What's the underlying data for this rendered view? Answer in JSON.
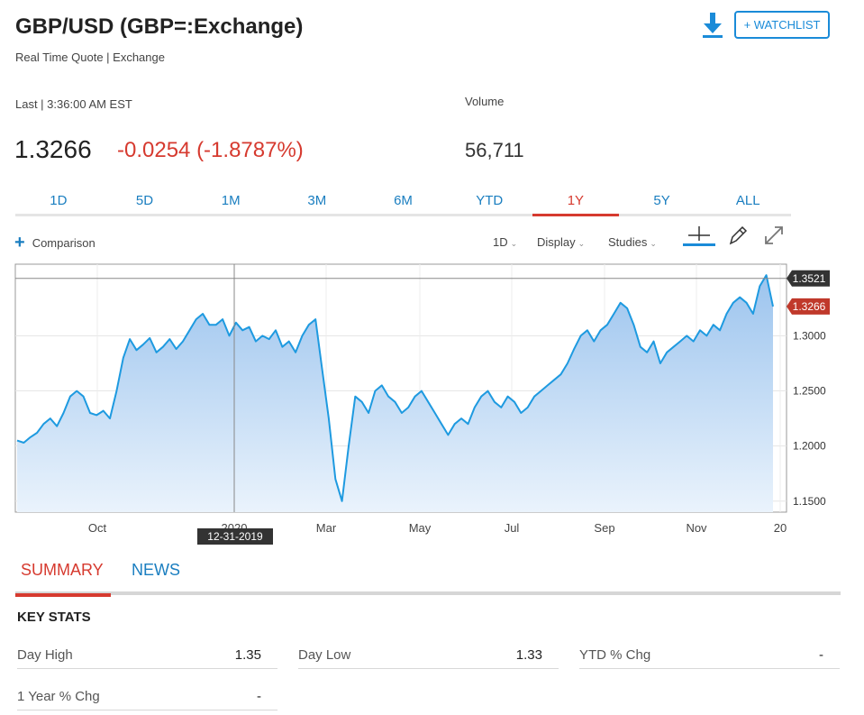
{
  "header": {
    "title": "GBP/USD (GBP=:Exchange)",
    "subtitle": "Real Time Quote | Exchange",
    "watchlist_label": "+ WATCHLIST",
    "download_icon": "download-icon"
  },
  "quote": {
    "last_label": "Last | 3:36:00 AM EST",
    "last_price": "1.3266",
    "change": "-0.0254 (-1.8787%)",
    "volume_label": "Volume",
    "volume_value": "56,711"
  },
  "range_tabs": {
    "items": [
      "1D",
      "5D",
      "1M",
      "3M",
      "6M",
      "YTD",
      "1Y",
      "5Y",
      "ALL"
    ],
    "active": "1Y"
  },
  "toolbar": {
    "comparison_label": "Comparison",
    "interval_label": "1D",
    "display_label": "Display",
    "studies_label": "Studies"
  },
  "chart_data": {
    "type": "area",
    "x_labels": [
      "Oct",
      "2020",
      "Mar",
      "May",
      "Jul",
      "Sep",
      "Nov",
      "20"
    ],
    "y_ticks": [
      "1.3000",
      "1.2500",
      "1.2000",
      "1.1500"
    ],
    "ylim": [
      1.14,
      1.365
    ],
    "high_label": "1.3521",
    "last_label": "1.3266",
    "crosshair_label": "12-31-2019",
    "grid": true,
    "colors": {
      "line": "#1e9ae0",
      "fill_top": "#9cc4ee",
      "fill_bottom": "#eaf3fc",
      "last_tag": "#c0392b",
      "high_tag": "#333333"
    },
    "series": [
      {
        "values": [
          1.205,
          1.203,
          1.208,
          1.212,
          1.22,
          1.225,
          1.218,
          1.23,
          1.245,
          1.25,
          1.245,
          1.23,
          1.228,
          1.232,
          1.225,
          1.25,
          1.28,
          1.297,
          1.287,
          1.292,
          1.298,
          1.285,
          1.29,
          1.297,
          1.288,
          1.295,
          1.305,
          1.315,
          1.32,
          1.31,
          1.31,
          1.315,
          1.3,
          1.312,
          1.305,
          1.308,
          1.295,
          1.3,
          1.297,
          1.305,
          1.29,
          1.295,
          1.285,
          1.3,
          1.31,
          1.315,
          1.27,
          1.225,
          1.17,
          1.15,
          1.2,
          1.245,
          1.24,
          1.23,
          1.25,
          1.255,
          1.245,
          1.24,
          1.23,
          1.235,
          1.245,
          1.25,
          1.24,
          1.23,
          1.22,
          1.21,
          1.22,
          1.225,
          1.22,
          1.235,
          1.245,
          1.25,
          1.24,
          1.235,
          1.245,
          1.24,
          1.23,
          1.235,
          1.245,
          1.25,
          1.255,
          1.26,
          1.265,
          1.275,
          1.288,
          1.3,
          1.305,
          1.295,
          1.305,
          1.31,
          1.32,
          1.33,
          1.325,
          1.31,
          1.29,
          1.285,
          1.295,
          1.275,
          1.285,
          1.29,
          1.295,
          1.3,
          1.295,
          1.305,
          1.3,
          1.31,
          1.305,
          1.32,
          1.33,
          1.335,
          1.33,
          1.32,
          1.345,
          1.355,
          1.3266
        ]
      }
    ]
  },
  "bottom_tabs": {
    "summary": "SUMMARY",
    "news": "NEWS"
  },
  "key_stats": {
    "heading": "KEY STATS",
    "day_high_label": "Day High",
    "day_high_value": "1.35",
    "day_low_label": "Day Low",
    "day_low_value": "1.33",
    "ytd_label": "YTD % Chg",
    "ytd_value": "-",
    "year_label": "1 Year % Chg",
    "year_value": "-"
  }
}
